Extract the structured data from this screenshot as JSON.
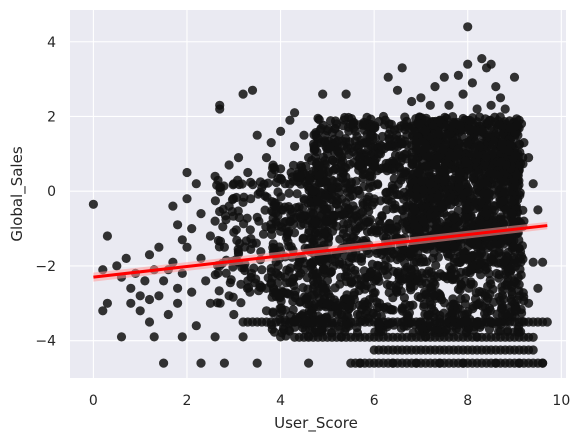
{
  "chart_data": {
    "type": "scatter",
    "title": "",
    "xlabel": "User_Score",
    "ylabel": "Global_Sales",
    "xlim": [
      -0.5,
      10.1
    ],
    "ylim": [
      -5.0,
      4.85
    ],
    "xticks": [
      0,
      2,
      4,
      6,
      8,
      10
    ],
    "yticks": [
      -4,
      -2,
      0,
      2,
      4
    ],
    "grid": true,
    "background_color": "#eaeaf2",
    "point_color": "#111111",
    "line_color": "#ff0000",
    "band_color": "#ff9999",
    "regression": {
      "x": [
        0,
        9.7
      ],
      "y": [
        -2.3,
        -0.92
      ],
      "ci_low": [
        -2.42,
        -1.02
      ],
      "ci_high": [
        -2.18,
        -0.82
      ]
    },
    "points": [
      [
        0,
        -0.35
      ],
      [
        0.2,
        -2.1
      ],
      [
        0.2,
        -3.2
      ],
      [
        0.3,
        -1.2
      ],
      [
        0.3,
        -3.0
      ],
      [
        0.5,
        -2.0
      ],
      [
        0.6,
        -2.3
      ],
      [
        0.6,
        -3.9
      ],
      [
        0.7,
        -1.8
      ],
      [
        0.8,
        -2.6
      ],
      [
        0.8,
        -3.0
      ],
      [
        0.9,
        -2.2
      ],
      [
        1.0,
        -2.8
      ],
      [
        1.0,
        -3.2
      ],
      [
        1.1,
        -2.4
      ],
      [
        1.2,
        -1.7
      ],
      [
        1.2,
        -2.9
      ],
      [
        1.2,
        -3.5
      ],
      [
        1.3,
        -2.1
      ],
      [
        1.3,
        -3.9
      ],
      [
        1.4,
        -1.5
      ],
      [
        1.4,
        -2.8
      ],
      [
        1.5,
        -4.6
      ],
      [
        1.5,
        -2.4
      ],
      [
        1.6,
        -2.1
      ],
      [
        1.6,
        -3.3
      ],
      [
        1.7,
        -0.4
      ],
      [
        1.7,
        -1.9
      ],
      [
        1.8,
        -0.9
      ],
      [
        1.8,
        -2.6
      ],
      [
        1.8,
        -3.0
      ],
      [
        1.9,
        -1.3
      ],
      [
        1.9,
        -2.2
      ],
      [
        1.9,
        -3.9
      ],
      [
        2.0,
        0.5
      ],
      [
        2.0,
        -0.2
      ],
      [
        2.0,
        -1.5
      ],
      [
        2.1,
        -1.0
      ],
      [
        2.1,
        -2.7
      ],
      [
        2.2,
        0.2
      ],
      [
        2.2,
        -3.6
      ],
      [
        2.3,
        -0.6
      ],
      [
        2.3,
        -1.8
      ],
      [
        2.3,
        -4.6
      ],
      [
        2.4,
        -2.4
      ],
      [
        2.5,
        -1.2
      ],
      [
        2.5,
        -3.0
      ],
      [
        2.6,
        0.4
      ],
      [
        2.6,
        -0.8
      ],
      [
        2.6,
        -3.9
      ],
      [
        2.7,
        2.3
      ],
      [
        2.7,
        2.2
      ],
      [
        2.7,
        0.1
      ],
      [
        2.7,
        -2.0
      ],
      [
        2.8,
        -1.5
      ],
      [
        2.8,
        -4.6
      ],
      [
        2.9,
        0.7
      ],
      [
        2.9,
        -0.4
      ],
      [
        2.9,
        -2.8
      ],
      [
        3.0,
        0.2
      ],
      [
        3.0,
        -1.1
      ],
      [
        3.0,
        -3.3
      ],
      [
        3.1,
        0.9
      ],
      [
        3.1,
        -1.9
      ],
      [
        3.2,
        2.6
      ],
      [
        3.2,
        -0.3
      ],
      [
        3.2,
        -3.9
      ],
      [
        3.3,
        0.5
      ],
      [
        3.3,
        -2.4
      ],
      [
        3.4,
        2.7
      ],
      [
        3.4,
        -1.4
      ],
      [
        3.5,
        1.5
      ],
      [
        3.5,
        -0.7
      ],
      [
        3.5,
        -4.6
      ],
      [
        3.6,
        0.1
      ],
      [
        3.6,
        -2.1
      ],
      [
        3.7,
        0.9
      ],
      [
        3.7,
        -3.2
      ],
      [
        3.8,
        -1.0
      ],
      [
        3.8,
        1.3
      ],
      [
        3.9,
        -0.4
      ],
      [
        3.9,
        -2.7
      ],
      [
        4.0,
        1.6
      ],
      [
        4.0,
        0.6
      ],
      [
        4.0,
        -1.6
      ],
      [
        4.0,
        -3.9
      ],
      [
        4.1,
        0.2
      ],
      [
        4.1,
        -2.3
      ],
      [
        4.2,
        1.9
      ],
      [
        4.2,
        -0.8
      ],
      [
        4.3,
        2.1
      ],
      [
        4.3,
        1.2
      ],
      [
        4.3,
        -3.5
      ],
      [
        4.4,
        0.4
      ],
      [
        4.4,
        -1.9
      ],
      [
        4.5,
        1.5
      ],
      [
        4.5,
        -0.2
      ],
      [
        4.6,
        0.9
      ],
      [
        4.6,
        -4.6
      ],
      [
        4.7,
        0.0
      ],
      [
        4.7,
        -2.6
      ],
      [
        4.8,
        1.4
      ],
      [
        4.8,
        -1.2
      ],
      [
        4.9,
        2.6
      ],
      [
        4.9,
        0.6
      ],
      [
        5.0,
        1.0
      ],
      [
        5.0,
        -3.0
      ],
      [
        5.1,
        0.3
      ],
      [
        5.2,
        1.8
      ],
      [
        5.2,
        -1.7
      ],
      [
        5.3,
        0.7
      ],
      [
        5.3,
        -3.9
      ],
      [
        5.4,
        2.6
      ],
      [
        5.4,
        1.1
      ],
      [
        5.5,
        0.2
      ],
      [
        5.5,
        -2.4
      ],
      [
        5.6,
        1.6
      ],
      [
        5.6,
        -0.5
      ],
      [
        5.7,
        0.9
      ],
      [
        5.7,
        -4.6
      ],
      [
        5.8,
        1.3
      ],
      [
        5.8,
        -1.4
      ],
      [
        5.9,
        0.4
      ],
      [
        5.9,
        -2.9
      ],
      [
        6.0,
        1.7
      ],
      [
        6.0,
        -0.3
      ],
      [
        6.1,
        1.0
      ],
      [
        6.1,
        -3.6
      ],
      [
        6.2,
        2.0
      ],
      [
        6.2,
        -1.6
      ],
      [
        6.3,
        1.2
      ],
      [
        6.3,
        3.05
      ],
      [
        6.4,
        0.6
      ],
      [
        6.4,
        -4.6
      ],
      [
        6.5,
        2.7
      ],
      [
        6.5,
        -2.2
      ],
      [
        6.6,
        3.3
      ],
      [
        6.6,
        0.9
      ],
      [
        6.7,
        1.5
      ],
      [
        6.7,
        -3.3
      ],
      [
        6.8,
        2.4
      ],
      [
        6.8,
        -0.7
      ],
      [
        6.9,
        1.1
      ],
      [
        6.9,
        -4.6
      ],
      [
        7.0,
        2.5
      ],
      [
        7.0,
        -1.9
      ],
      [
        7.1,
        1.6
      ],
      [
        7.1,
        -3.9
      ],
      [
        7.2,
        2.3
      ],
      [
        7.2,
        0.2
      ],
      [
        7.3,
        2.8
      ],
      [
        7.3,
        -2.5
      ],
      [
        7.4,
        1.9
      ],
      [
        7.4,
        -4.6
      ],
      [
        7.5,
        3.05
      ],
      [
        7.5,
        0.5
      ],
      [
        7.6,
        2.3
      ],
      [
        7.6,
        -1.2
      ],
      [
        7.7,
        1.8
      ],
      [
        7.7,
        -3.6
      ],
      [
        7.8,
        3.1
      ],
      [
        7.8,
        -0.3
      ],
      [
        7.9,
        2.6
      ],
      [
        7.9,
        -4.6
      ],
      [
        8.0,
        4.4
      ],
      [
        8.0,
        3.4
      ],
      [
        8.0,
        1.3
      ],
      [
        8.1,
        2.9
      ],
      [
        8.1,
        -2.0
      ],
      [
        8.2,
        2.2
      ],
      [
        8.2,
        -3.9
      ],
      [
        8.3,
        3.55
      ],
      [
        8.3,
        1.6
      ],
      [
        8.4,
        3.3
      ],
      [
        8.4,
        -0.6
      ],
      [
        8.5,
        3.4
      ],
      [
        8.5,
        2.3
      ],
      [
        8.6,
        2.8
      ],
      [
        8.6,
        -4.6
      ],
      [
        8.7,
        2.5
      ],
      [
        8.7,
        -1.4
      ],
      [
        8.8,
        2.2
      ],
      [
        8.8,
        -3.3
      ],
      [
        8.9,
        1.7
      ],
      [
        8.9,
        0.1
      ],
      [
        9.0,
        3.05
      ],
      [
        9.0,
        -2.4
      ],
      [
        9.1,
        1.9
      ],
      [
        9.1,
        -4.6
      ],
      [
        9.2,
        1.3
      ],
      [
        9.2,
        -0.8
      ],
      [
        9.3,
        0.9
      ],
      [
        9.3,
        -3.0
      ],
      [
        9.4,
        0.2
      ],
      [
        9.4,
        -1.9
      ],
      [
        9.5,
        -0.5
      ],
      [
        9.5,
        -2.6
      ],
      [
        9.6,
        -1.9
      ],
      [
        9.6,
        -4.6
      ],
      [
        9.7,
        -3.5
      ]
    ],
    "density_regions": [
      {
        "x": [
          4.6,
          9.2
        ],
        "y": [
          -3.8,
          2.0
        ],
        "count": 1700
      },
      {
        "x": [
          6.8,
          9.1
        ],
        "y": [
          -1.5,
          1.9
        ],
        "count": 700
      },
      {
        "x": [
          3.8,
          5.0
        ],
        "y": [
          -3.9,
          0.7
        ],
        "count": 260
      },
      {
        "x": [
          2.6,
          4.0
        ],
        "y": [
          -3.0,
          0.3
        ],
        "count": 110
      }
    ],
    "floor_rows": [
      {
        "y": -4.6,
        "x_from": 5.5,
        "x_to": 9.6
      },
      {
        "y": -4.25,
        "x_from": 6.0,
        "x_to": 9.4
      },
      {
        "y": -3.91,
        "x_from": 4.3,
        "x_to": 9.4
      },
      {
        "y": -3.5,
        "x_from": 3.2,
        "x_to": 9.6
      }
    ]
  }
}
